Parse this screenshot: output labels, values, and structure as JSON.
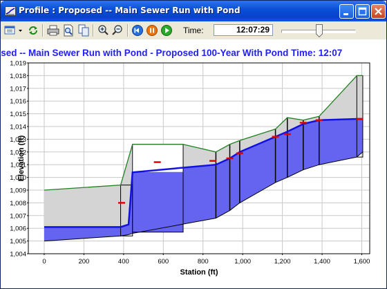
{
  "window": {
    "title": "Profile : Proposed -- Main Sewer Run with Pond",
    "controls": [
      "minimize-icon",
      "maximize-icon",
      "close-icon"
    ]
  },
  "toolbar": {
    "icons": [
      "options-menu-icon",
      "refresh-icon",
      "print-icon",
      "print-preview-icon",
      "copy-icon",
      "zoom-in-icon",
      "zoom-out-icon",
      "rewind-icon",
      "pause-icon",
      "play-icon"
    ],
    "time_label": "Time:",
    "time_value": "12:07:29",
    "slider_position": 0.52
  },
  "colors": {
    "title_blue": "#2020f0",
    "hgl_blue": "#1010e0",
    "pipe_fill": "#6464f0",
    "ground_green": "#208020",
    "fill_gray": "#d4d4d4",
    "marker_red": "#e00000"
  },
  "chart_data": {
    "type": "area",
    "title": "osed -- Main Sewer Run with Pond - Proposed 100-Year With Pond Time: 12:07",
    "xlabel": "Station (ft)",
    "ylabel": "Elevation (ft)",
    "xlim": [
      -80,
      1640
    ],
    "ylim": [
      1004,
      1019
    ],
    "x_ticks": [
      0,
      200,
      400,
      600,
      800,
      1000,
      1200,
      1400,
      1600
    ],
    "x_tick_labels": [
      "0",
      "200",
      "400",
      "600",
      "800",
      "1,000",
      "1,200",
      "1,400",
      "1,600"
    ],
    "y_ticks": [
      1004,
      1005,
      1006,
      1007,
      1008,
      1009,
      1010,
      1011,
      1012,
      1013,
      1014,
      1015,
      1016,
      1017,
      1018,
      1019
    ],
    "y_tick_labels": [
      "1,004",
      "1,005",
      "1,006",
      "1,007",
      "1,008",
      "1,009",
      "1,010",
      "1,011",
      "1,012",
      "1,013",
      "1,014",
      "1,015",
      "1,016",
      "1,017",
      "1,018",
      "1,019"
    ],
    "grid": true,
    "series": [
      {
        "x": [
          0,
          385,
          425,
          445,
          865,
          935,
          985,
          1165,
          1225,
          1305,
          1385,
          1575,
          1605
        ],
        "y": [
          1005,
          1005.4,
          1005.5,
          1005.6,
          1006.8,
          1007.4,
          1008.0,
          1009.6,
          1010.0,
          1010.6,
          1011.0,
          1011.6,
          1012.0
        ]
      },
      {
        "x": [
          0,
          385,
          425,
          445,
          865,
          935,
          985,
          1165,
          1225,
          1305,
          1385,
          1575,
          1605
        ],
        "y": [
          1006.1,
          1006.1,
          1006.3,
          1010.4,
          1011.0,
          1011.5,
          1012.0,
          1013.2,
          1013.6,
          1014.2,
          1014.5,
          1014.6,
          1014.6
        ]
      },
      {
        "x": [
          0,
          385,
          445,
          700,
          865,
          935,
          985,
          1165,
          1225,
          1305,
          1385,
          1575,
          1605
        ],
        "y": [
          1009.0,
          1009.4,
          1012.6,
          1012.6,
          1012.0,
          1012.6,
          1012.9,
          1013.8,
          1014.7,
          1014.5,
          1014.8,
          1018.0,
          1018.0
        ]
      }
    ],
    "water_level_markers": [
      {
        "x": 390,
        "y": 1008.0
      },
      {
        "x": 570,
        "y": 1011.2
      },
      {
        "x": 850,
        "y": 1011.3
      },
      {
        "x": 935,
        "y": 1011.5
      },
      {
        "x": 985,
        "y": 1011.9
      },
      {
        "x": 1165,
        "y": 1013.2
      },
      {
        "x": 1225,
        "y": 1013.4
      },
      {
        "x": 1305,
        "y": 1014.3
      },
      {
        "x": 1385,
        "y": 1014.5
      },
      {
        "x": 1590,
        "y": 1014.6
      }
    ],
    "structures": [
      {
        "x0": 385,
        "x1": 445,
        "bottom": 1005.4,
        "top": 1009.4
      },
      {
        "x0": 445,
        "x1": 700,
        "bottom": 1005.7,
        "top": 1012.6
      },
      {
        "x0": 1575,
        "x1": 1605,
        "bottom": 1011.6,
        "top": 1018.0
      }
    ]
  }
}
